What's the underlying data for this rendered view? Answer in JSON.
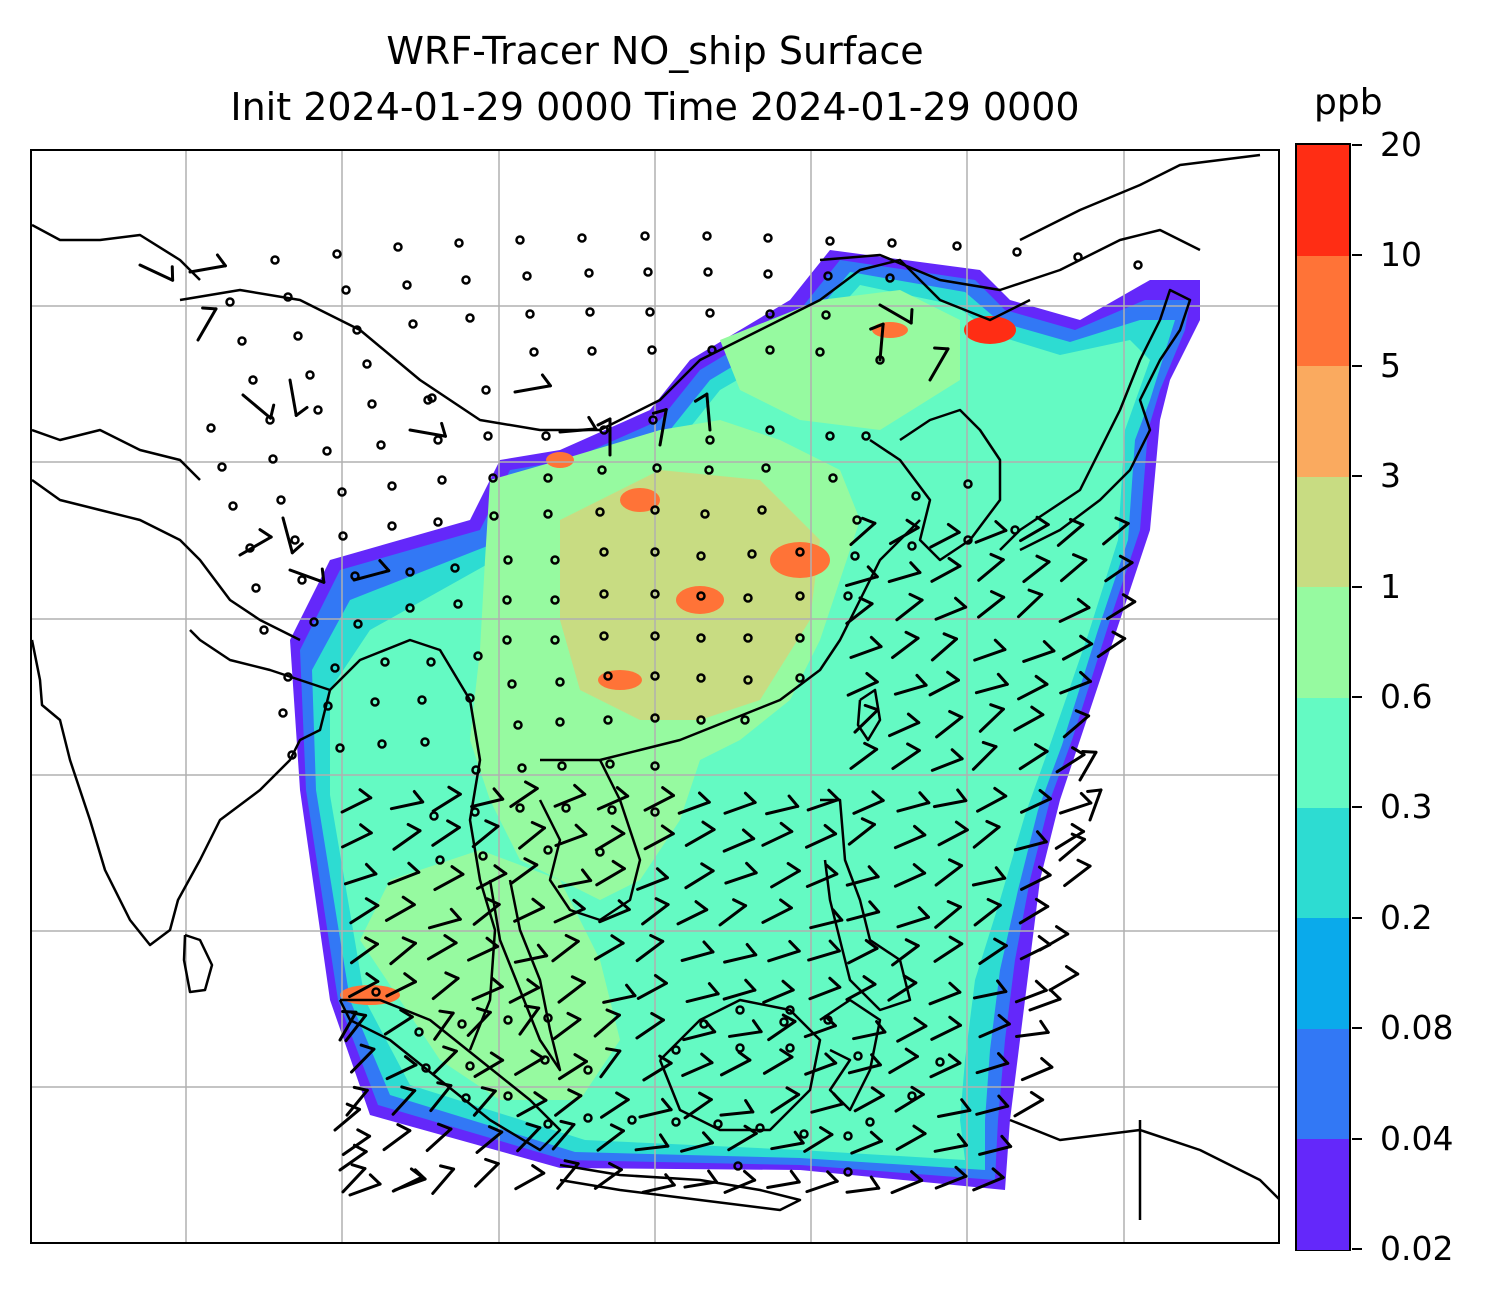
{
  "title_line1": "WRF-Tracer NO_ship Surface",
  "title_line2": "Init 2024-01-29 0000 Time 2024-01-29 0000",
  "colorbar": {
    "unit": "ppb",
    "tick_labels": [
      "0.02",
      "0.04",
      "0.08",
      "0.2",
      "0.3",
      "0.6",
      "1",
      "3",
      "5",
      "10",
      "20"
    ],
    "colors": [
      "#6428fa",
      "#3278f5",
      "#0aaaeb",
      "#2ddcd2",
      "#64fac3",
      "#96faa0",
      "#c8dc82",
      "#faaa5f",
      "#ff7337",
      "#ff2d14"
    ]
  },
  "map": {
    "field_colors": {
      "ocean_low": "#3278f5",
      "ocean_mid": "#2ddcd2",
      "ocean_high": "#64fac3",
      "land": "#96faa0",
      "hotspot": "#ff7337",
      "hotspot_strong": "#ff2d14",
      "elevated": "#c8dc82",
      "edge": "#6428fa"
    },
    "gridline_color": "#b0b0b0",
    "coastline_color": "#000000",
    "wind_symbols": [
      "calm-circle",
      "wind-barb"
    ]
  }
}
